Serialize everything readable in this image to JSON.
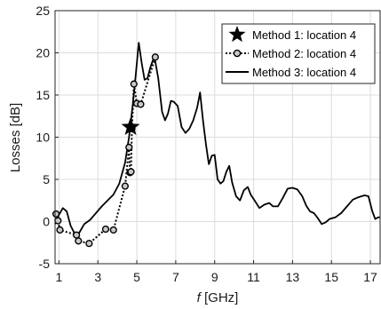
{
  "chart_data": {
    "type": "line",
    "title": "",
    "xlabel_italic": "f",
    "xlabel_unit": " [GHz]",
    "ylabel": "Losses [dB]",
    "xlim": [
      0.8,
      17.5
    ],
    "ylim": [
      -5,
      25
    ],
    "xticks": [
      1,
      3,
      5,
      7,
      9,
      11,
      13,
      15,
      17
    ],
    "yticks": [
      -5,
      0,
      5,
      10,
      15,
      20,
      25
    ],
    "grid": true,
    "legend_position": "top-right",
    "series": [
      {
        "name": "Method 1: location 4",
        "style": "star",
        "points": [
          [
            4.68,
            11.2
          ]
        ]
      },
      {
        "name": "Method 2: location 4",
        "style": "dotted-circle",
        "points": [
          [
            0.85,
            0.9
          ],
          [
            0.95,
            0.1
          ],
          [
            1.05,
            -1.0
          ],
          [
            1.9,
            -1.6
          ],
          [
            2.0,
            -2.3
          ],
          [
            2.55,
            -2.6
          ],
          [
            3.4,
            -0.9
          ],
          [
            3.8,
            -1.0
          ],
          [
            4.4,
            4.2
          ],
          [
            4.6,
            8.8
          ],
          [
            4.65,
            5.8
          ],
          [
            4.7,
            5.9
          ],
          [
            4.75,
            11.0
          ],
          [
            4.85,
            16.3
          ],
          [
            5.0,
            14.0
          ],
          [
            5.2,
            13.9
          ],
          [
            5.95,
            19.5
          ]
        ]
      },
      {
        "name": "Method 3: location 4",
        "style": "solid",
        "points": [
          [
            0.8,
            -0.3
          ],
          [
            1.0,
            0.8
          ],
          [
            1.2,
            1.6
          ],
          [
            1.4,
            1.2
          ],
          [
            1.6,
            -0.5
          ],
          [
            1.8,
            -1.4
          ],
          [
            2.0,
            -1.5
          ],
          [
            2.3,
            -0.3
          ],
          [
            2.6,
            0.2
          ],
          [
            2.9,
            1.0
          ],
          [
            3.2,
            1.8
          ],
          [
            3.5,
            2.5
          ],
          [
            3.8,
            3.2
          ],
          [
            4.1,
            4.5
          ],
          [
            4.4,
            7.0
          ],
          [
            4.6,
            10.0
          ],
          [
            4.8,
            14.0
          ],
          [
            4.95,
            17.5
          ],
          [
            5.1,
            21.2
          ],
          [
            5.25,
            18.8
          ],
          [
            5.4,
            16.8
          ],
          [
            5.55,
            17.0
          ],
          [
            5.7,
            18.3
          ],
          [
            5.9,
            19.6
          ],
          [
            6.1,
            17.0
          ],
          [
            6.3,
            13.0
          ],
          [
            6.45,
            12.0
          ],
          [
            6.6,
            12.8
          ],
          [
            6.75,
            14.3
          ],
          [
            6.9,
            14.2
          ],
          [
            7.1,
            13.7
          ],
          [
            7.3,
            11.2
          ],
          [
            7.5,
            10.5
          ],
          [
            7.7,
            11.0
          ],
          [
            7.9,
            12.0
          ],
          [
            8.1,
            13.5
          ],
          [
            8.25,
            15.3
          ],
          [
            8.4,
            12.0
          ],
          [
            8.55,
            9.2
          ],
          [
            8.7,
            6.8
          ],
          [
            8.85,
            7.8
          ],
          [
            9.0,
            7.9
          ],
          [
            9.15,
            5.0
          ],
          [
            9.3,
            4.5
          ],
          [
            9.45,
            4.8
          ],
          [
            9.6,
            5.9
          ],
          [
            9.75,
            6.6
          ],
          [
            9.9,
            4.6
          ],
          [
            10.1,
            3.0
          ],
          [
            10.3,
            2.5
          ],
          [
            10.5,
            3.7
          ],
          [
            10.7,
            4.1
          ],
          [
            10.85,
            3.2
          ],
          [
            11.05,
            2.5
          ],
          [
            11.3,
            1.6
          ],
          [
            11.55,
            2.0
          ],
          [
            11.8,
            2.2
          ],
          [
            12.0,
            1.8
          ],
          [
            12.25,
            1.8
          ],
          [
            12.5,
            2.8
          ],
          [
            12.75,
            3.9
          ],
          [
            13.0,
            4.0
          ],
          [
            13.25,
            3.8
          ],
          [
            13.5,
            3.0
          ],
          [
            13.7,
            1.9
          ],
          [
            13.9,
            1.2
          ],
          [
            14.1,
            1.0
          ],
          [
            14.3,
            0.4
          ],
          [
            14.5,
            -0.3
          ],
          [
            14.7,
            -0.1
          ],
          [
            14.9,
            0.3
          ],
          [
            15.2,
            0.5
          ],
          [
            15.5,
            1.0
          ],
          [
            15.8,
            1.8
          ],
          [
            16.1,
            2.6
          ],
          [
            16.4,
            2.9
          ],
          [
            16.7,
            3.1
          ],
          [
            16.9,
            3.0
          ],
          [
            17.1,
            1.2
          ],
          [
            17.25,
            0.3
          ],
          [
            17.4,
            0.5
          ],
          [
            17.5,
            0.5
          ]
        ]
      }
    ]
  }
}
